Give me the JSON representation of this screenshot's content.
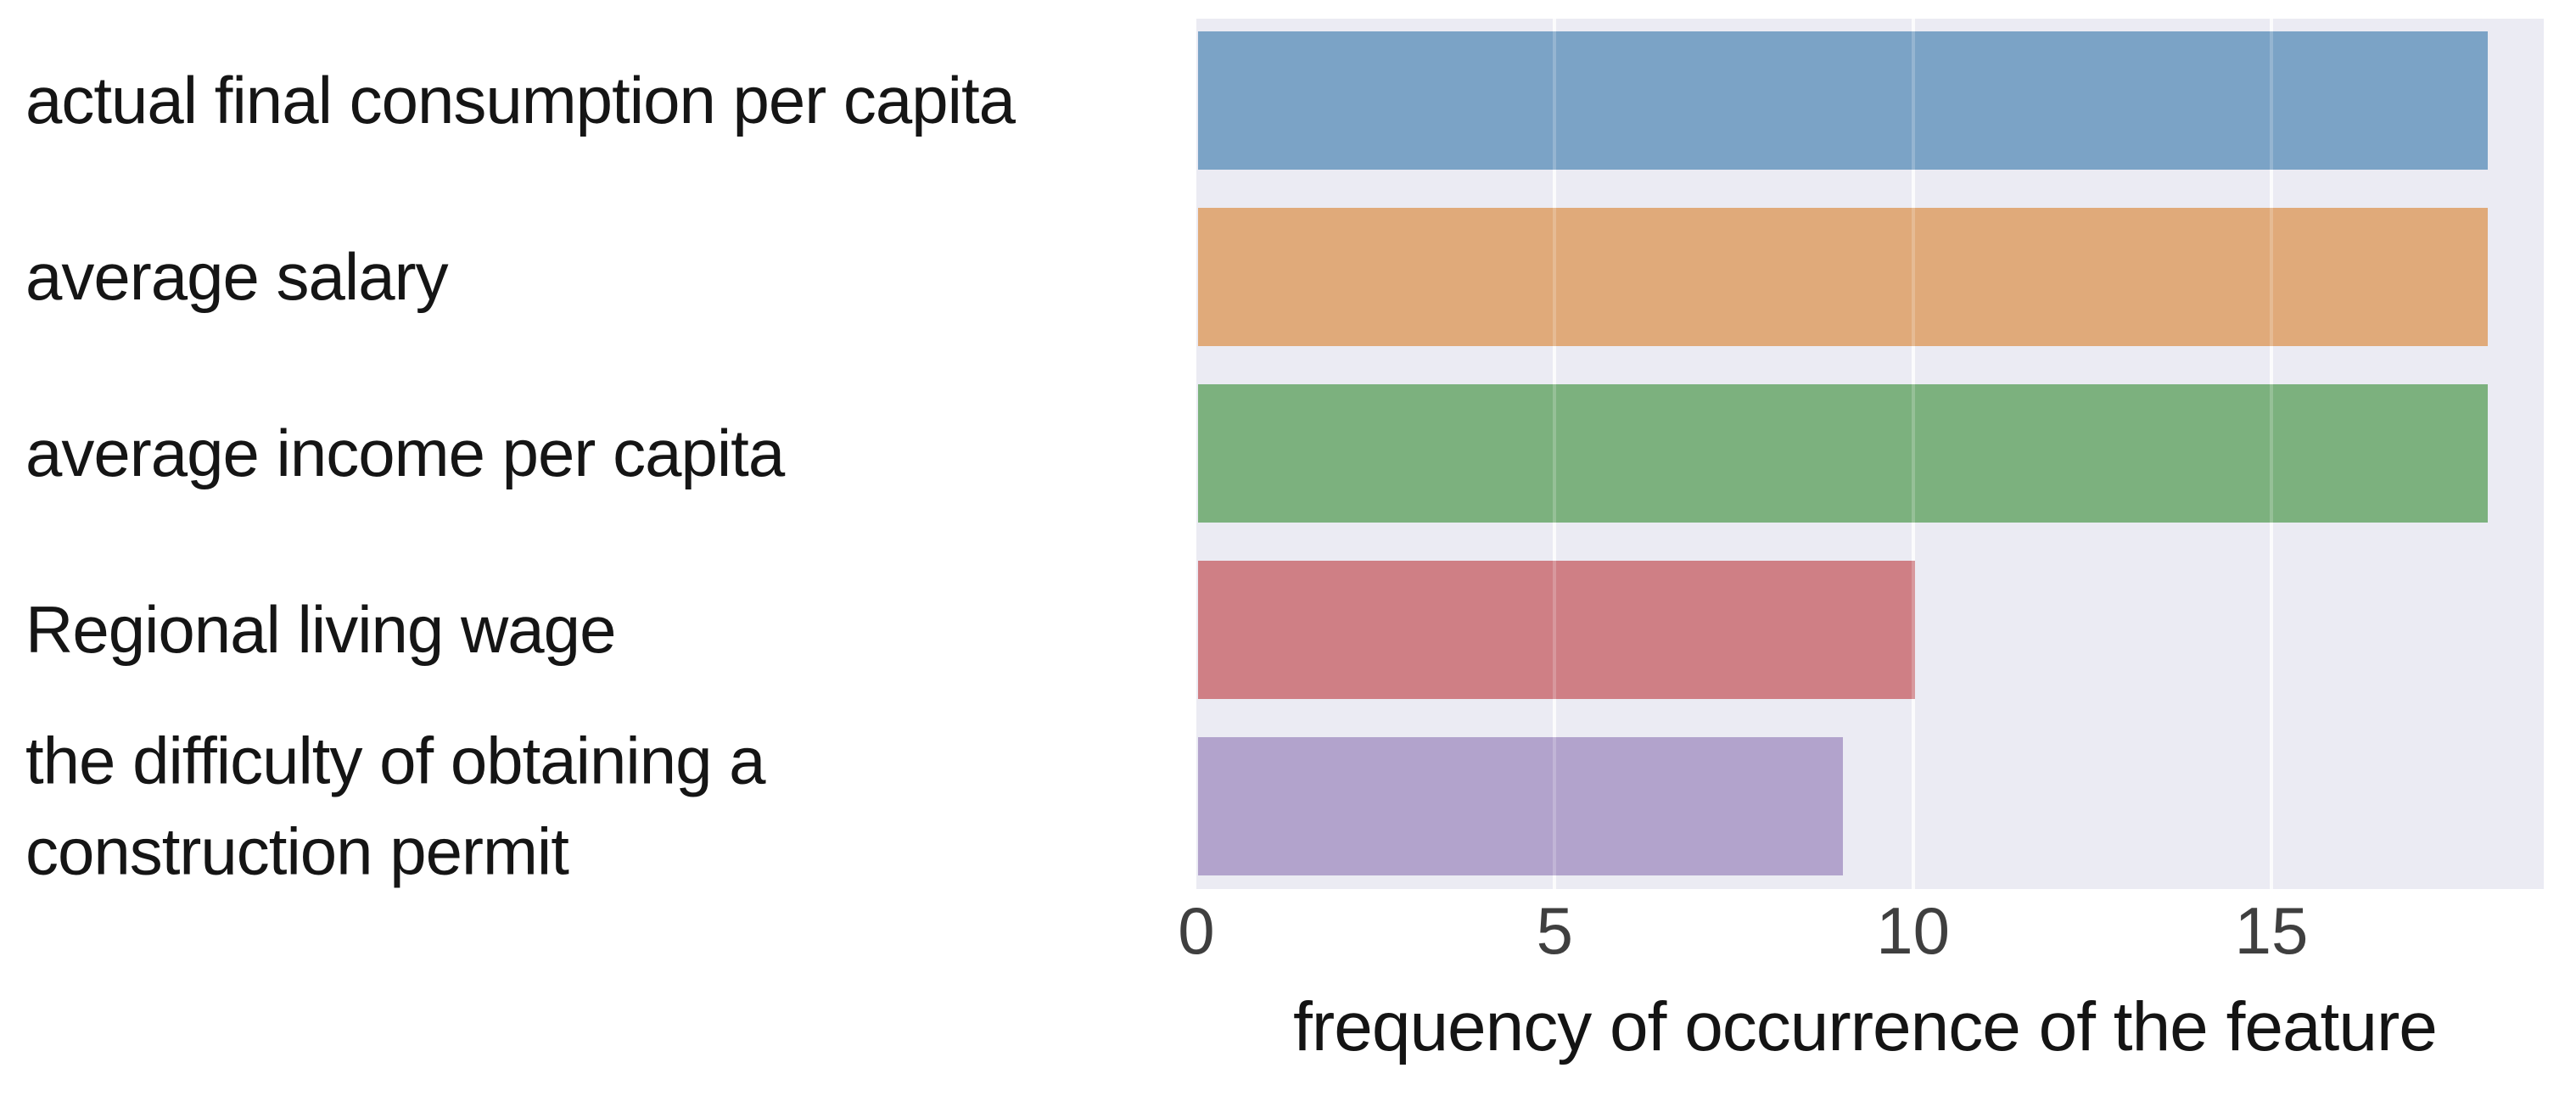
{
  "figure": {
    "background": "#ffffff"
  },
  "chart_data": {
    "type": "bar",
    "orientation": "horizontal",
    "title": "",
    "categories": [
      {
        "name": "actual final consumption per capita",
        "lines": [
          "actual final consumption per capita"
        ]
      },
      {
        "name": "average salary",
        "lines": [
          "average salary"
        ]
      },
      {
        "name": "average income per capita",
        "lines": [
          "average income per capita"
        ]
      },
      {
        "name": "Regional living wage",
        "lines": [
          "Regional living wage"
        ]
      },
      {
        "name": "the difficulty of obtaining a construction permit",
        "lines": [
          "the difficulty of obtaining a",
          "construction permit"
        ]
      }
    ],
    "values": [
      18,
      18,
      18,
      10,
      9
    ],
    "bar_colors": [
      "#7ba3c6",
      "#e0aa7a",
      "#7cb17e",
      "#cf7f85",
      "#b2a3cc"
    ],
    "xlabel": "frequency of occurrence of the feature",
    "x_ticks": [
      "0",
      "5",
      "10",
      "15"
    ],
    "x_tick_values": [
      0,
      5,
      10,
      15
    ],
    "xlim": [
      0,
      18.8
    ],
    "grid": true,
    "legend": "none",
    "plot_background": "#ebebf3",
    "gridline_color": "#fafafc",
    "tick_color": "#3f3f3f",
    "label_color": "#151515"
  }
}
